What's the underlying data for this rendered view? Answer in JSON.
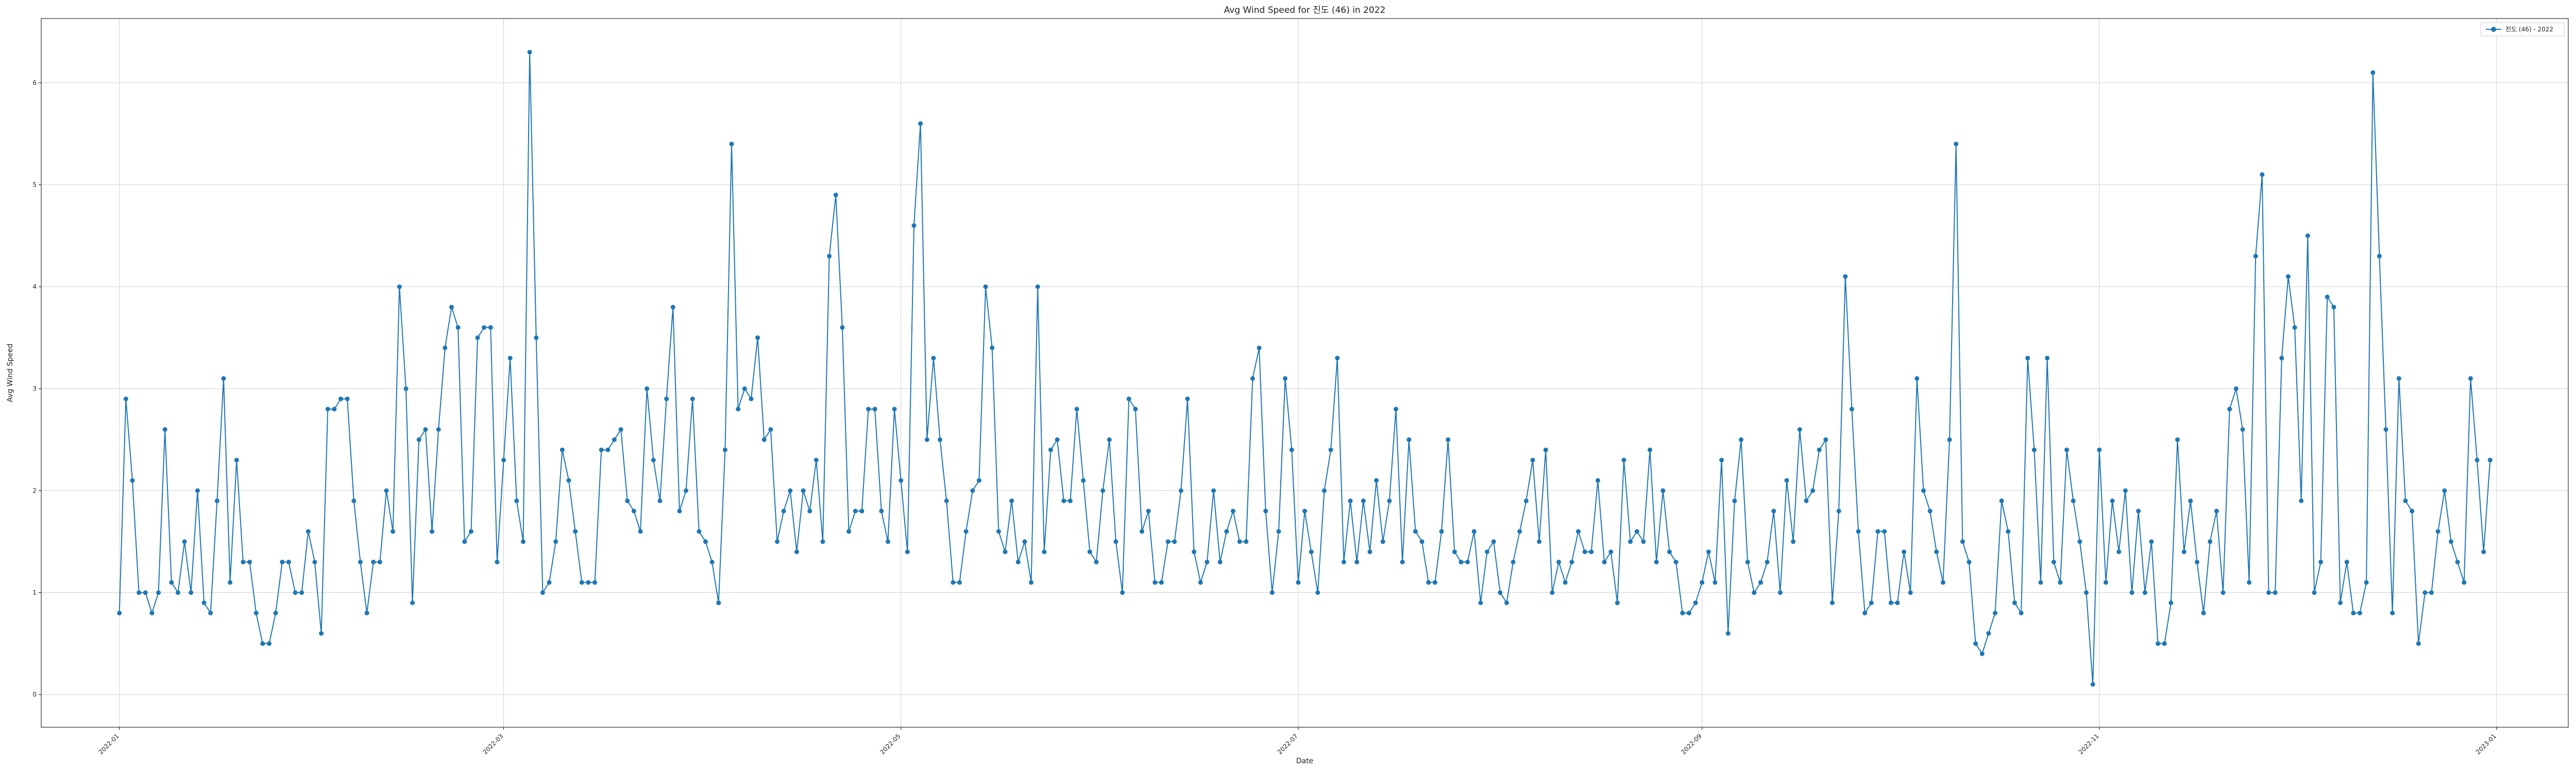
{
  "chart_data": {
    "type": "line",
    "title": "Avg Wind Speed for 진도 (46) in 2022",
    "xlabel": "Date",
    "ylabel": "Avg Wind Speed",
    "ylim": [
      -0.32,
      6.63
    ],
    "xlim": [
      "2021-12-20",
      "2023-01-12"
    ],
    "yticks": [
      0,
      1,
      2,
      3,
      4,
      5,
      6
    ],
    "xticks": [
      "2022-01",
      "2022-03",
      "2022-05",
      "2022-07",
      "2022-09",
      "2022-11",
      "2023-01"
    ],
    "grid": true,
    "legend": {
      "position": "top-right"
    },
    "colors": {
      "series": "#1f77b4",
      "grid": "#d0d0d0",
      "axes": "#000000"
    },
    "series": [
      {
        "name": "진도 (46) - 2022",
        "start": "2022-01-01",
        "values": [
          0.8,
          2.9,
          2.1,
          1.0,
          1.0,
          0.8,
          1.0,
          2.6,
          1.1,
          1.0,
          1.5,
          1.0,
          2.0,
          0.9,
          0.8,
          1.9,
          3.1,
          1.1,
          2.3,
          1.3,
          1.3,
          0.8,
          0.5,
          0.5,
          0.8,
          1.3,
          1.3,
          1.0,
          1.0,
          1.6,
          1.3,
          0.6,
          2.8,
          2.8,
          2.9,
          2.9,
          1.9,
          1.3,
          0.8,
          1.3,
          1.3,
          2.0,
          1.6,
          4.0,
          3.0,
          0.9,
          2.5,
          2.6,
          1.6,
          2.6,
          3.4,
          3.8,
          3.6,
          1.5,
          1.6,
          3.5,
          3.6,
          3.6,
          1.3,
          2.3,
          3.3,
          1.9,
          1.5,
          6.3,
          3.5,
          1.0,
          1.1,
          1.5,
          2.4,
          2.1,
          1.6,
          1.1,
          1.1,
          1.1,
          2.4,
          2.4,
          2.5,
          2.6,
          1.9,
          1.8,
          1.6,
          3.0,
          2.3,
          1.9,
          2.9,
          3.8,
          1.8,
          2.0,
          2.9,
          1.6,
          1.5,
          1.3,
          0.9,
          2.4,
          5.4,
          2.8,
          3.0,
          2.9,
          3.5,
          2.5,
          2.6,
          1.5,
          1.8,
          2.0,
          1.4,
          2.0,
          1.8,
          2.3,
          1.5,
          4.3,
          4.9,
          3.6,
          1.6,
          1.8,
          1.8,
          2.8,
          2.8,
          1.8,
          1.5,
          2.8,
          2.1,
          1.4,
          4.6,
          5.6,
          2.5,
          3.3,
          2.5,
          1.9,
          1.1,
          1.1,
          1.6,
          2.0,
          2.1,
          4.0,
          3.4,
          1.6,
          1.4,
          1.9,
          1.3,
          1.5,
          1.1,
          4.0,
          1.4,
          2.4,
          2.5,
          1.9,
          1.9,
          2.8,
          2.1,
          1.4,
          1.3,
          2.0,
          2.5,
          1.5,
          1.0,
          2.9,
          2.8,
          1.6,
          1.8,
          1.1,
          1.1,
          1.5,
          1.5,
          2.0,
          2.9,
          1.4,
          1.1,
          1.3,
          2.0,
          1.3,
          1.6,
          1.8,
          1.5,
          1.5,
          3.1,
          3.4,
          1.8,
          1.0,
          1.6,
          3.1,
          2.4,
          1.1,
          1.8,
          1.4,
          1.0,
          2.0,
          2.4,
          3.3,
          1.3,
          1.9,
          1.3,
          1.9,
          1.4,
          2.1,
          1.5,
          1.9,
          2.8,
          1.3,
          2.5,
          1.6,
          1.5,
          1.1,
          1.1,
          1.6,
          2.5,
          1.4,
          1.3,
          1.3,
          1.6,
          0.9,
          1.4,
          1.5,
          1.0,
          0.9,
          1.3,
          1.6,
          1.9,
          2.3,
          1.5,
          2.4,
          1.0,
          1.3,
          1.1,
          1.3,
          1.6,
          1.4,
          1.4,
          2.1,
          1.3,
          1.4,
          0.9,
          2.3,
          1.5,
          1.6,
          1.5,
          2.4,
          1.3,
          2.0,
          1.4,
          1.3,
          0.8,
          0.8,
          0.9,
          1.1,
          1.4,
          1.1,
          2.3,
          0.6,
          1.9,
          2.5,
          1.3,
          1.0,
          1.1,
          1.3,
          1.8,
          1.0,
          2.1,
          1.5,
          2.6,
          1.9,
          2.0,
          2.4,
          2.5,
          0.9,
          1.8,
          4.1,
          2.8,
          1.6,
          0.8,
          0.9,
          1.6,
          1.6,
          0.9,
          0.9,
          1.4,
          1.0,
          3.1,
          2.0,
          1.8,
          1.4,
          1.1,
          2.5,
          5.4,
          1.5,
          1.3,
          0.5,
          0.4,
          0.6,
          0.8,
          1.9,
          1.6,
          0.9,
          0.8,
          3.3,
          2.4,
          1.1,
          3.3,
          1.3,
          1.1,
          2.4,
          1.9,
          1.5,
          1.0,
          0.1,
          2.4,
          1.1,
          1.9,
          1.4,
          2.0,
          1.0,
          1.8,
          1.0,
          1.5,
          0.5,
          0.5,
          0.9,
          2.5,
          1.4,
          1.9,
          1.3,
          0.8,
          1.5,
          1.8,
          1.0,
          2.8,
          3.0,
          2.6,
          1.1,
          4.3,
          5.1,
          1.0,
          1.0,
          3.3,
          4.1,
          3.6,
          1.9,
          4.5,
          1.0,
          1.3,
          3.9,
          3.8,
          0.9,
          1.3,
          0.8,
          0.8,
          1.1,
          6.1,
          4.3,
          2.6,
          0.8,
          3.1,
          1.9,
          1.8,
          0.5,
          1.0,
          1.0,
          1.6,
          2.0,
          1.5,
          1.3,
          1.1,
          3.1,
          2.3,
          1.4,
          2.3
        ]
      }
    ]
  }
}
